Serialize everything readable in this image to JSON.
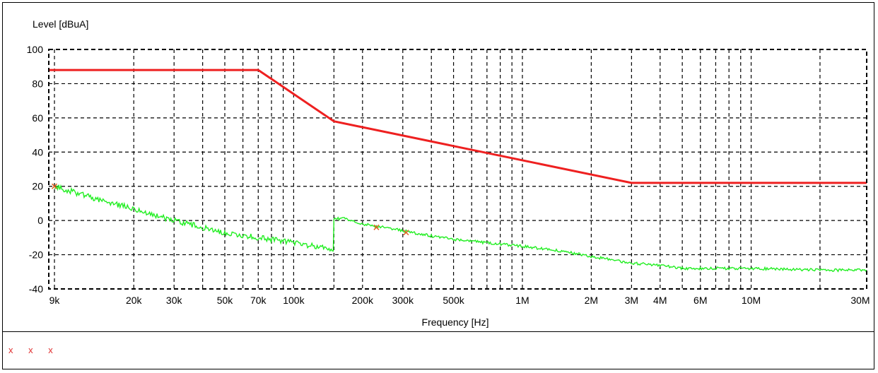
{
  "chart_data": {
    "type": "line",
    "title": "",
    "ylabel": "Level [dBuA]",
    "xlabel": "Frequency [Hz]",
    "xscale": "log",
    "xlim": [
      8500,
      32000000
    ],
    "ylim": [
      -40,
      100
    ],
    "y_ticks": [
      100,
      80,
      60,
      40,
      20,
      0,
      -20,
      -40
    ],
    "x_tick_labels": [
      {
        "v": 9000,
        "t": "9k"
      },
      {
        "v": 20000,
        "t": "20k"
      },
      {
        "v": 30000,
        "t": "30k"
      },
      {
        "v": 50000,
        "t": "50k"
      },
      {
        "v": 70000,
        "t": "70k"
      },
      {
        "v": 100000,
        "t": "100k"
      },
      {
        "v": 200000,
        "t": "200k"
      },
      {
        "v": 300000,
        "t": "300k"
      },
      {
        "v": 500000,
        "t": "500k"
      },
      {
        "v": 1000000,
        "t": "1M"
      },
      {
        "v": 2000000,
        "t": "2M"
      },
      {
        "v": 3000000,
        "t": "3M"
      },
      {
        "v": 4000000,
        "t": "4M"
      },
      {
        "v": 6000000,
        "t": "6M"
      },
      {
        "v": 10000000,
        "t": "10M"
      },
      {
        "v": 30000000,
        "t": "30M"
      }
    ],
    "x_gridlines": [
      9000,
      20000,
      30000,
      40000,
      50000,
      60000,
      70000,
      80000,
      90000,
      100000,
      150000,
      200000,
      300000,
      400000,
      500000,
      600000,
      700000,
      800000,
      900000,
      1000000,
      2000000,
      3000000,
      4000000,
      5000000,
      6000000,
      7000000,
      8000000,
      9000000,
      10000000,
      20000000
    ],
    "grid": true,
    "grid_style": "dashed",
    "series": [
      {
        "color": "#ee2020",
        "points": [
          [
            8500,
            88
          ],
          [
            70000,
            88
          ],
          [
            150000,
            58
          ],
          [
            3000000,
            22
          ],
          [
            32000000,
            22
          ]
        ]
      },
      {
        "color": "#22ee22",
        "points": [
          [
            9000,
            20
          ],
          [
            12000,
            15
          ],
          [
            15000,
            11
          ],
          [
            20000,
            7
          ],
          [
            25000,
            3
          ],
          [
            30000,
            0
          ],
          [
            40000,
            -4
          ],
          [
            50000,
            -7
          ],
          [
            70000,
            -10
          ],
          [
            100000,
            -13
          ],
          [
            149000,
            -17
          ],
          [
            150000,
            1
          ],
          [
            170000,
            1
          ],
          [
            200000,
            -2
          ],
          [
            250000,
            -4
          ],
          [
            300000,
            -6
          ],
          [
            400000,
            -9
          ],
          [
            500000,
            -11
          ],
          [
            700000,
            -13
          ],
          [
            1000000,
            -15
          ],
          [
            1500000,
            -18
          ],
          [
            2000000,
            -21
          ],
          [
            3000000,
            -25
          ],
          [
            4000000,
            -26
          ],
          [
            5000000,
            -28
          ],
          [
            10000000,
            -28
          ],
          [
            20000000,
            -29
          ],
          [
            32000000,
            -29
          ]
        ]
      }
    ],
    "markers": [
      {
        "x": 9000,
        "y": 20,
        "symbol": "x",
        "color": "#e06020"
      },
      {
        "x": 230000,
        "y": -4,
        "symbol": "x",
        "color": "#e06020"
      },
      {
        "x": 310000,
        "y": -7,
        "symbol": "x",
        "color": "#e06020"
      }
    ]
  },
  "legend_marks": "x x x"
}
